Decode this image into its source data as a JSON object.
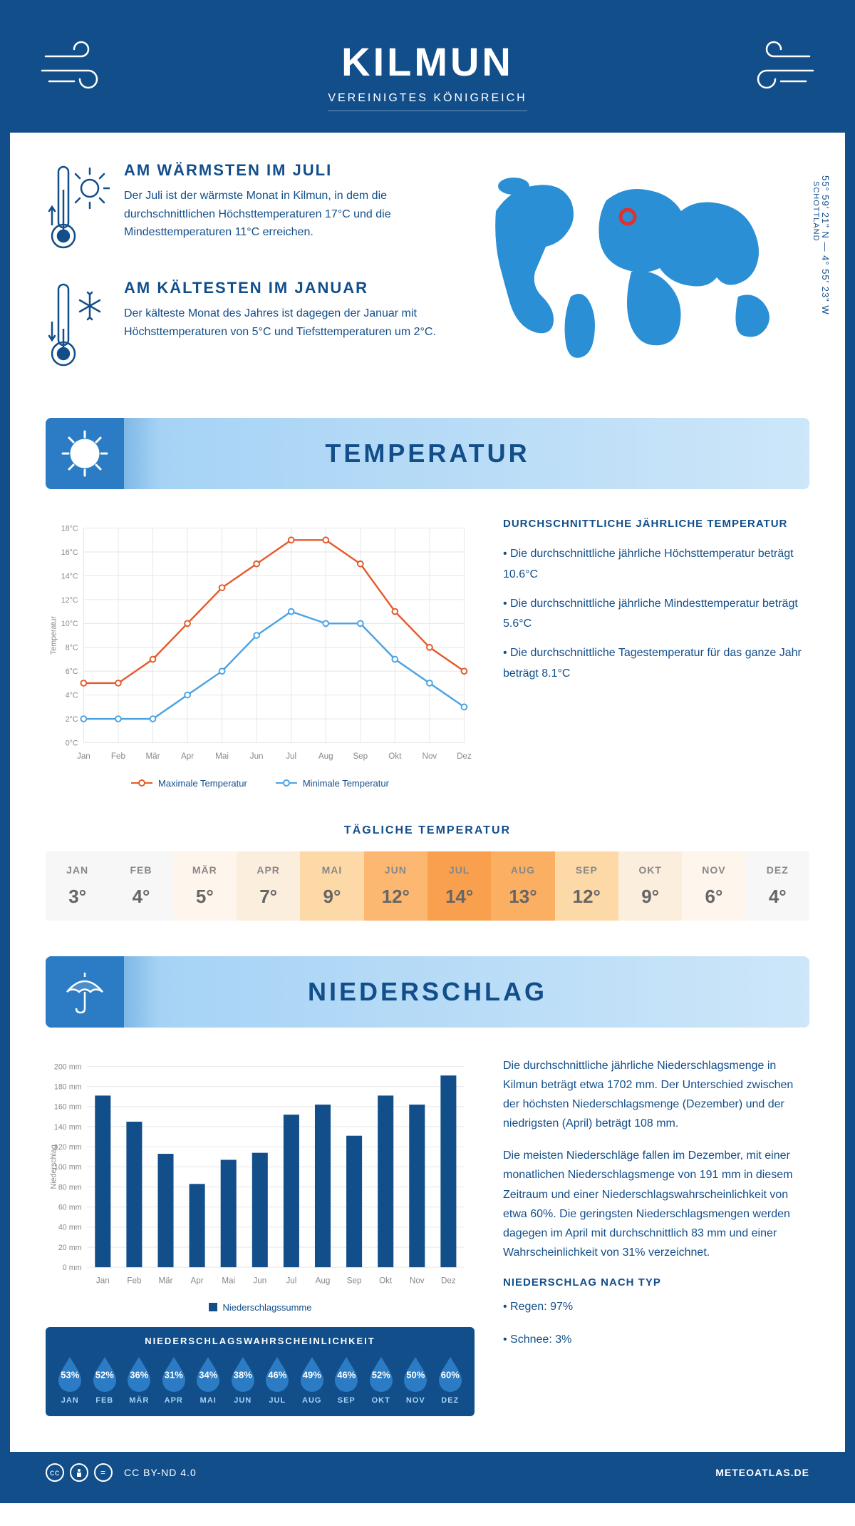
{
  "header": {
    "title": "KILMUN",
    "subtitle": "VEREINIGTES KÖNIGREICH"
  },
  "coords": {
    "line": "55° 59' 21\" N — 4° 55' 23\" W",
    "region": "SCHOTTLAND"
  },
  "warm": {
    "heading": "AM WÄRMSTEN IM JULI",
    "text": "Der Juli ist der wärmste Monat in Kilmun, in dem die durchschnittlichen Höchsttemperaturen 17°C und die Mindesttemperaturen 11°C erreichen."
  },
  "cold": {
    "heading": "AM KÄLTESTEN IM JANUAR",
    "text": "Der kälteste Monat des Jahres ist dagegen der Januar mit Höchsttemperaturen von 5°C und Tiefsttemperaturen um 2°C."
  },
  "sections": {
    "temperature": "TEMPERATUR",
    "precipitation": "NIEDERSCHLAG"
  },
  "temp_chart": {
    "type": "line",
    "months": [
      "Jan",
      "Feb",
      "Mär",
      "Apr",
      "Mai",
      "Jun",
      "Jul",
      "Aug",
      "Sep",
      "Okt",
      "Nov",
      "Dez"
    ],
    "max": [
      5,
      5,
      7,
      10,
      13,
      15,
      17,
      17,
      15,
      11,
      8,
      6
    ],
    "min": [
      2,
      2,
      2,
      4,
      6,
      9,
      11,
      10,
      10,
      7,
      5,
      3
    ],
    "ylabel": "Temperatur",
    "ylim": [
      0,
      18
    ],
    "ytick_step": 2,
    "max_color": "#e55a2b",
    "min_color": "#4ba3e3",
    "grid_color": "#e6e6e6",
    "legend_max": "Maximale Temperatur",
    "legend_min": "Minimale Temperatur"
  },
  "temp_side": {
    "heading": "DURCHSCHNITTLICHE JÄHRLICHE TEMPERATUR",
    "p1": "• Die durchschnittliche jährliche Höchsttemperatur beträgt 10.6°C",
    "p2": "• Die durchschnittliche jährliche Mindesttemperatur beträgt 5.6°C",
    "p3": "• Die durchschnittliche Tagestemperatur für das ganze Jahr beträgt 8.1°C"
  },
  "daily": {
    "heading": "TÄGLICHE TEMPERATUR",
    "months": [
      "JAN",
      "FEB",
      "MÄR",
      "APR",
      "MAI",
      "JUN",
      "JUL",
      "AUG",
      "SEP",
      "OKT",
      "NOV",
      "DEZ"
    ],
    "values": [
      "3°",
      "4°",
      "5°",
      "7°",
      "9°",
      "12°",
      "14°",
      "13°",
      "12°",
      "9°",
      "6°",
      "4°"
    ],
    "colors": [
      "#f7f7f7",
      "#f7f7f7",
      "#fef5ed",
      "#fceedd",
      "#fdd9a8",
      "#fcb871",
      "#f9a04e",
      "#fbaf62",
      "#fdd9a8",
      "#fceedd",
      "#fef5ed",
      "#f7f7f7"
    ]
  },
  "precip_chart": {
    "type": "bar",
    "months": [
      "Jan",
      "Feb",
      "Mär",
      "Apr",
      "Mai",
      "Jun",
      "Jul",
      "Aug",
      "Sep",
      "Okt",
      "Nov",
      "Dez"
    ],
    "values": [
      171,
      145,
      113,
      83,
      107,
      114,
      152,
      162,
      131,
      171,
      162,
      191
    ],
    "ylabel": "Niederschlag",
    "ylim": [
      0,
      200
    ],
    "ytick_step": 20,
    "bar_color": "#124e8a",
    "grid_color": "#e6e6e6",
    "legend": "Niederschlagssumme"
  },
  "precip_text": {
    "p1": "Die durchschnittliche jährliche Niederschlagsmenge in Kilmun beträgt etwa 1702 mm. Der Unterschied zwischen der höchsten Niederschlagsmenge (Dezember) und der niedrigsten (April) beträgt 108 mm.",
    "p2": "Die meisten Niederschläge fallen im Dezember, mit einer monatlichen Niederschlagsmenge von 191 mm in diesem Zeitraum und einer Niederschlagswahrscheinlichkeit von etwa 60%. Die geringsten Niederschlagsmengen werden dagegen im April mit durchschnittlich 83 mm und einer Wahrscheinlichkeit von 31% verzeichnet.",
    "type_heading": "NIEDERSCHLAG NACH TYP",
    "type_rain": "• Regen: 97%",
    "type_snow": "• Schnee: 3%"
  },
  "prob": {
    "heading": "NIEDERSCHLAGSWAHRSCHEINLICHKEIT",
    "months": [
      "JAN",
      "FEB",
      "MÄR",
      "APR",
      "MAI",
      "JUN",
      "JUL",
      "AUG",
      "SEP",
      "OKT",
      "NOV",
      "DEZ"
    ],
    "values": [
      "53%",
      "52%",
      "36%",
      "31%",
      "34%",
      "38%",
      "46%",
      "49%",
      "46%",
      "52%",
      "50%",
      "60%"
    ],
    "drop_color": "#2b7cc4"
  },
  "footer": {
    "license": "CC BY-ND 4.0",
    "site": "METEOATLAS.DE"
  }
}
